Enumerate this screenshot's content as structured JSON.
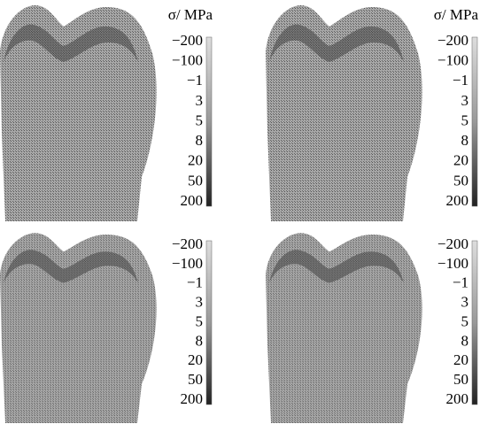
{
  "panels": [
    {
      "unit": "σ/ MPa",
      "scale": [
        "−200",
        "−100",
        "−1",
        "3",
        "5",
        "8",
        "20",
        "50",
        "200"
      ]
    },
    {
      "unit": "σ/ MPa",
      "scale": [
        "−200",
        "−100",
        "−1",
        "3",
        "5",
        "8",
        "20",
        "50",
        "200"
      ]
    },
    {
      "scale": [
        "−200",
        "−100",
        "−1",
        "3",
        "5",
        "8",
        "20",
        "50",
        "200"
      ]
    },
    {
      "scale": [
        "−200",
        "−100",
        "−1",
        "3",
        "5",
        "8",
        "20",
        "50",
        "200"
      ]
    }
  ]
}
